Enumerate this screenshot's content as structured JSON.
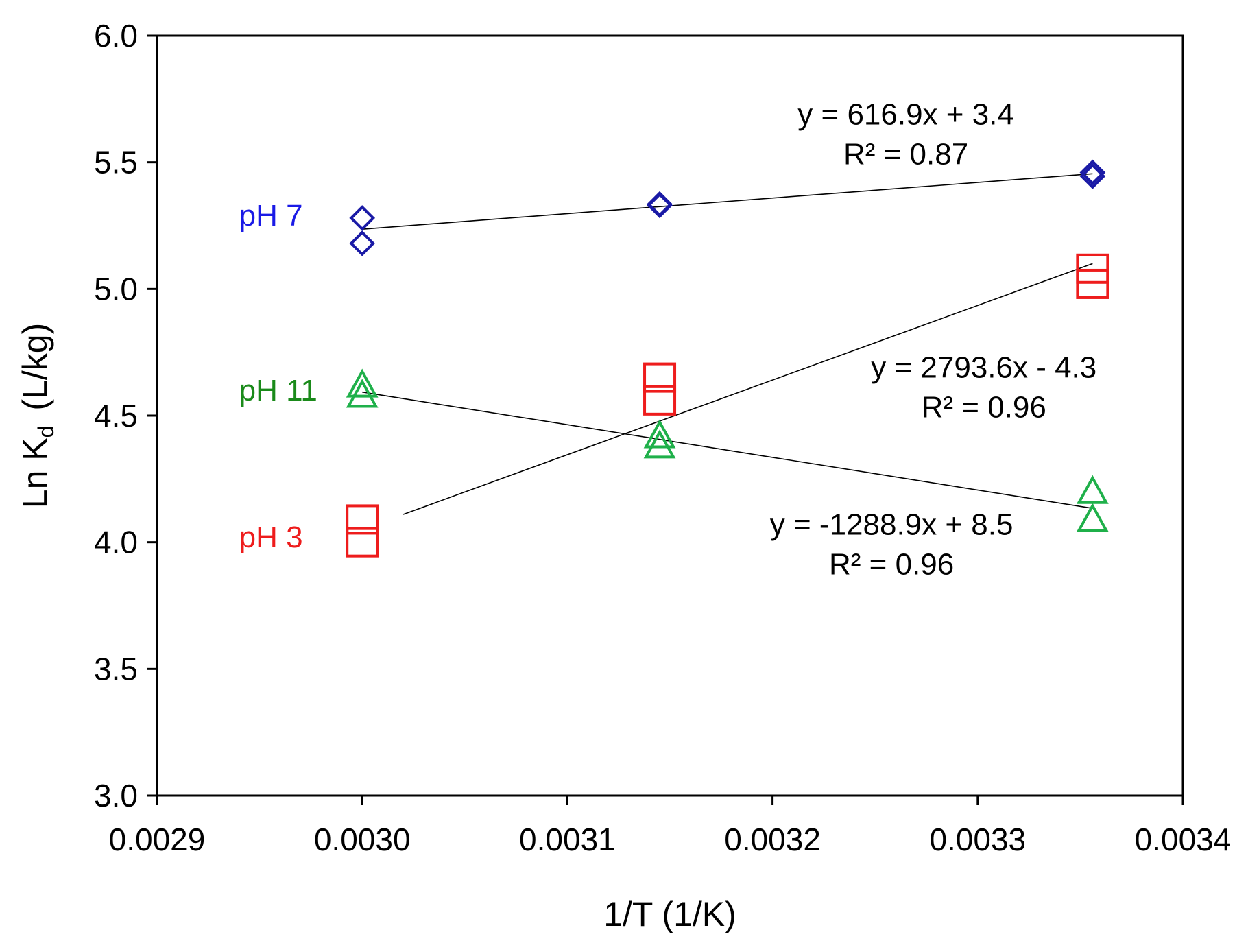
{
  "chart_data": {
    "type": "scatter",
    "title": "",
    "xlabel": "1/T (1/K)",
    "ylabel": "Ln K",
    "ylabel_subscript": "d",
    "ylabel_units": "(L/kg)",
    "xlim": [
      0.0029,
      0.0034
    ],
    "ylim": [
      3.0,
      6.0
    ],
    "x_ticks": [
      0.0029,
      0.003,
      0.0031,
      0.0032,
      0.0033,
      0.0034
    ],
    "x_tick_labels": [
      "0.0029",
      "0.0030",
      "0.0031",
      "0.0032",
      "0.0033",
      "0.0034"
    ],
    "y_ticks": [
      3.0,
      3.5,
      4.0,
      4.5,
      5.0,
      5.5,
      6.0
    ],
    "y_tick_labels": [
      "3.0",
      "3.5",
      "4.0",
      "4.5",
      "5.0",
      "5.5",
      "6.0"
    ],
    "grid": false,
    "series": [
      {
        "name": "pH 7",
        "label": "pH 7",
        "color": "#1a1aa6",
        "label_color": "#1a1ae6",
        "marker": "diamond",
        "points": [
          {
            "x": 0.003,
            "y": 5.28
          },
          {
            "x": 0.003,
            "y": 5.18
          },
          {
            "x": 0.003145,
            "y": 5.335
          },
          {
            "x": 0.003145,
            "y": 5.33
          },
          {
            "x": 0.003356,
            "y": 5.46
          },
          {
            "x": 0.003356,
            "y": 5.445
          }
        ],
        "trend": {
          "x": [
            0.003,
            0.003356
          ],
          "y": [
            5.236,
            5.455
          ]
        },
        "equation": "y = 616.9x + 3.4",
        "r2": "R² = 0.87",
        "label_anchor": {
          "x": 0.00294,
          "y": 5.25
        },
        "annotation_anchor": {
          "x": 0.003265,
          "y": 5.65
        }
      },
      {
        "name": "pH 11",
        "label": "pH 11",
        "color": "#1fb04a",
        "label_color": "#1a8a1a",
        "marker": "triangle",
        "points": [
          {
            "x": 0.003,
            "y": 4.62
          },
          {
            "x": 0.003,
            "y": 4.58
          },
          {
            "x": 0.003145,
            "y": 4.42
          },
          {
            "x": 0.003145,
            "y": 4.38
          },
          {
            "x": 0.003356,
            "y": 4.2
          },
          {
            "x": 0.003356,
            "y": 4.09
          }
        ],
        "trend": {
          "x": [
            0.003,
            0.003356
          ],
          "y": [
            4.593,
            4.134
          ]
        },
        "equation": "y = -1288.9x + 8.5",
        "r2": "R² = 0.96",
        "label_anchor": {
          "x": 0.00294,
          "y": 4.56
        },
        "annotation_anchor": {
          "x": 0.003258,
          "y": 4.03
        }
      },
      {
        "name": "pH 3",
        "label": "pH 3",
        "color": "#ee1c1c",
        "label_color": "#ee1c1c",
        "marker": "square",
        "points": [
          {
            "x": 0.003,
            "y": 4.09
          },
          {
            "x": 0.003,
            "y": 4.0
          },
          {
            "x": 0.003145,
            "y": 4.65
          },
          {
            "x": 0.003145,
            "y": 4.56
          },
          {
            "x": 0.003356,
            "y": 5.08
          },
          {
            "x": 0.003356,
            "y": 5.02
          }
        ],
        "trend": {
          "x": [
            0.00302,
            0.003356
          ],
          "y": [
            4.11,
            5.1
          ]
        },
        "equation": "y = 2793.6x - 4.3",
        "r2": "R² = 0.96",
        "label_anchor": {
          "x": 0.00294,
          "y": 3.98
        },
        "annotation_anchor": {
          "x": 0.003303,
          "y": 4.65
        }
      }
    ]
  }
}
